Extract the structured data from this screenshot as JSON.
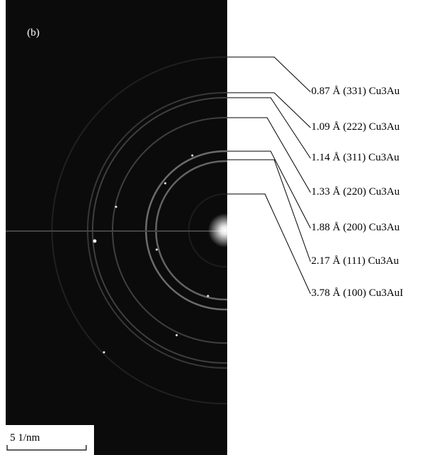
{
  "panel_label": "(b)",
  "rings": [
    {
      "label": "0.87 Å (331) Cu3Au"
    },
    {
      "label": "1.09 Å (222) Cu3Au"
    },
    {
      "label": "1.14 Å (311) Cu3Au"
    },
    {
      "label": "1.33 Å (220) Cu3Au"
    },
    {
      "label": "1.88 Å (200) Cu3Au"
    },
    {
      "label": "2.17 Å (111) Cu3Au"
    },
    {
      "label": "3.78 Å (100) Cu3AuI"
    }
  ],
  "scale_bar": "5 1/nm"
}
